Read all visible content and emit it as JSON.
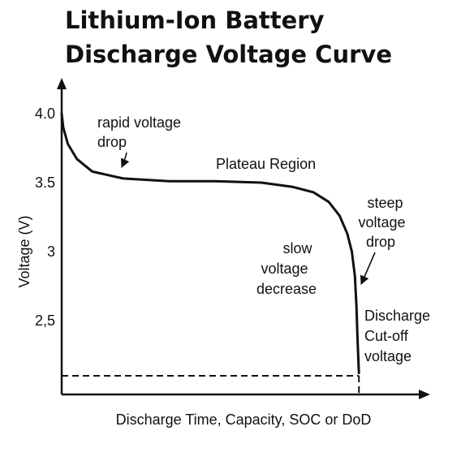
{
  "chart_data": {
    "type": "line",
    "title": [
      "Lithium-Ion Battery",
      "Discharge Voltage Curve"
    ],
    "xlabel": "Discharge Time, Capacity, SOC or DoD",
    "ylabel": "Voltage (V)",
    "yticks": [
      {
        "value": 4.0,
        "label": "4.0"
      },
      {
        "value": 3.5,
        "label": "3.5"
      },
      {
        "value": 3.0,
        "label": "3"
      },
      {
        "value": 2.5,
        "label": "2,5"
      }
    ],
    "ylim": [
      2.0,
      4.2
    ],
    "xlim": [
      0,
      1.2
    ],
    "grid": false,
    "legend": "none",
    "cutoff_voltage": 2.1,
    "series": [
      {
        "x": [
          0,
          0.005,
          0.02,
          0.05,
          0.1,
          0.2,
          0.35,
          0.5,
          0.65,
          0.75,
          0.82,
          0.87,
          0.905,
          0.93,
          0.945,
          0.955,
          0.96,
          0.963,
          0.966,
          0.968
        ],
        "y": [
          4.0,
          3.9,
          3.78,
          3.67,
          3.58,
          3.53,
          3.51,
          3.51,
          3.5,
          3.47,
          3.43,
          3.36,
          3.26,
          3.13,
          3.0,
          2.82,
          2.6,
          2.4,
          2.22,
          2.12
        ]
      }
    ],
    "annotations": [
      {
        "lines": [
          "rapid voltage",
          "drop"
        ]
      },
      {
        "lines": [
          "Plateau Region"
        ]
      },
      {
        "lines": [
          "steep",
          "voltage",
          "drop"
        ]
      },
      {
        "lines": [
          "slow",
          "voltage",
          "decrease"
        ]
      },
      {
        "lines": [
          "Discharge",
          "Cut-off",
          "voltage"
        ]
      }
    ]
  }
}
